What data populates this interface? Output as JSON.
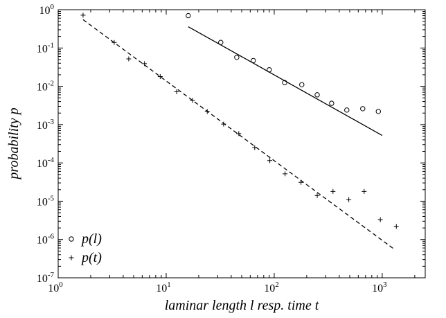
{
  "chart_data": {
    "type": "scatter",
    "xlabel": "laminar length l resp. time t",
    "ylabel": "probability p",
    "xscale": "log",
    "yscale": "log",
    "xlim": [
      1,
      2500
    ],
    "ylim": [
      1e-07,
      1
    ],
    "x_ticks": [
      {
        "value": 1,
        "base": "10",
        "exp": "0"
      },
      {
        "value": 10,
        "base": "10",
        "exp": "1"
      },
      {
        "value": 100,
        "base": "10",
        "exp": "2"
      },
      {
        "value": 1000,
        "base": "10",
        "exp": "3"
      }
    ],
    "y_ticks": [
      {
        "value": 1,
        "base": "10",
        "exp": "0"
      },
      {
        "value": 0.1,
        "base": "10",
        "exp": "-1"
      },
      {
        "value": 0.01,
        "base": "10",
        "exp": "-2"
      },
      {
        "value": 0.001,
        "base": "10",
        "exp": "-3"
      },
      {
        "value": 0.0001,
        "base": "10",
        "exp": "-4"
      },
      {
        "value": 1e-05,
        "base": "10",
        "exp": "-5"
      },
      {
        "value": 1e-06,
        "base": "10",
        "exp": "-6"
      },
      {
        "value": 1e-07,
        "base": "10",
        "exp": "-7"
      }
    ],
    "grid": false,
    "legend": {
      "position": "bottom-left",
      "entries": [
        {
          "label": "p(l)",
          "marker": "circle"
        },
        {
          "label": "p(t)",
          "marker": "plus"
        }
      ]
    },
    "series": [
      {
        "name": "p(l)",
        "marker": "circle",
        "x": [
          16,
          32,
          45,
          64,
          90,
          125,
          180,
          250,
          340,
          470,
          660,
          920
        ],
        "y": [
          0.7,
          0.14,
          0.057,
          0.047,
          0.027,
          0.0125,
          0.011,
          0.006,
          0.0036,
          0.0024,
          0.0026,
          0.0022
        ]
      },
      {
        "name": "p(t)",
        "marker": "plus",
        "x": [
          1.7,
          3.3,
          4.5,
          6.3,
          8.8,
          12.5,
          17.5,
          24,
          34,
          47,
          66,
          91,
          126,
          177,
          250,
          350,
          490,
          680,
          960,
          1350
        ],
        "y": [
          0.72,
          0.14,
          0.052,
          0.039,
          0.018,
          0.0072,
          0.0043,
          0.0022,
          0.00103,
          0.00058,
          0.00025,
          0.000115,
          5.2e-05,
          3.1e-05,
          1.4e-05,
          1.8e-05,
          1.1e-05,
          1.8e-05,
          3.3e-06,
          2.2e-06
        ]
      }
    ],
    "fit_lines": [
      {
        "for": "p(l)",
        "style": "solid",
        "x": [
          16,
          1000
        ],
        "y": [
          0.36,
          0.00052
        ]
      },
      {
        "for": "p(t)",
        "style": "dashed",
        "x": [
          1.7,
          1300
        ],
        "y": [
          0.55,
          5.5e-07
        ]
      }
    ]
  }
}
